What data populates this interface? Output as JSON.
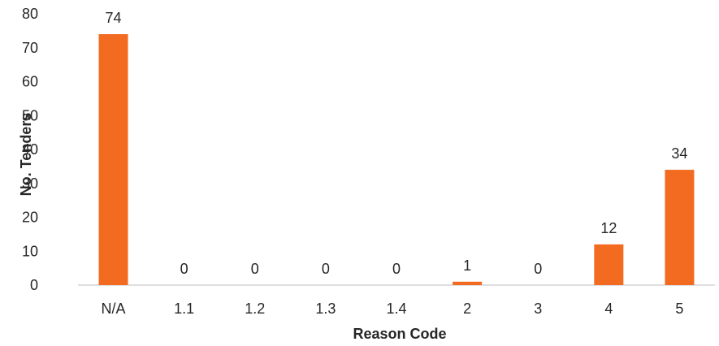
{
  "chart_data": {
    "type": "bar",
    "title": "",
    "xlabel": "Reason Code",
    "ylabel": "No. Tenders",
    "categories": [
      "N/A",
      "1.1",
      "1.2",
      "1.3",
      "1.4",
      "2",
      "3",
      "4",
      "5"
    ],
    "values": [
      74,
      0,
      0,
      0,
      0,
      1,
      0,
      12,
      34
    ],
    "ylim": [
      0,
      80
    ],
    "yticks": [
      "0",
      "10",
      "20",
      "30",
      "40",
      "50",
      "60",
      "70",
      "80"
    ],
    "grid": false,
    "legend": "none",
    "data_labels": true,
    "bar_color": "#F26B21"
  }
}
